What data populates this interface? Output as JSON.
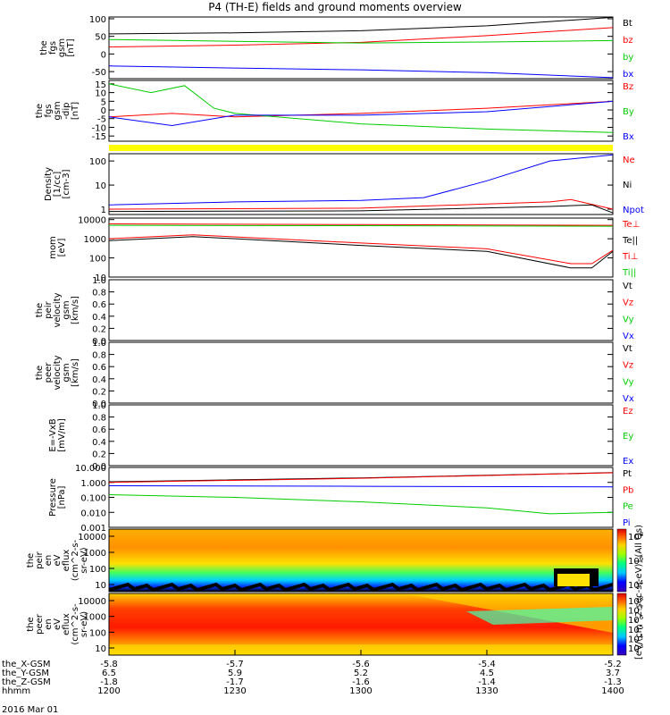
{
  "chart_data": {
    "type": "line",
    "title": "P4 (TH-E) fields and ground moments overview",
    "x_time_range": [
      "1200",
      "1400"
    ],
    "panels": [
      {
        "id": "fgs_gsm",
        "ylabel": [
          "the",
          "fgs",
          "gsm",
          "[nT]"
        ],
        "yticks": [
          "100",
          "50",
          "0",
          "-50"
        ],
        "ylim": [
          -70,
          105
        ],
        "series": [
          {
            "name": "Bt",
            "color": "#000000",
            "x": [
              "1200",
              "1230",
              "1300",
              "1330",
              "1400"
            ],
            "values": [
              57,
              60,
              66,
              80,
              104
            ]
          },
          {
            "name": "bz",
            "color": "#ff0000",
            "x": [
              "1200",
              "1230",
              "1300",
              "1330",
              "1400"
            ],
            "values": [
              20,
              25,
              33,
              52,
              75
            ]
          },
          {
            "name": "by",
            "color": "#00cc00",
            "x": [
              "1200",
              "1230",
              "1300",
              "1330",
              "1400"
            ],
            "values": [
              41,
              36,
              31,
              34,
              38
            ]
          },
          {
            "name": "bx",
            "color": "#0000ff",
            "x": [
              "1200",
              "1230",
              "1300",
              "1330",
              "1400"
            ],
            "values": [
              -34,
              -40,
              -45,
              -53,
              -67
            ]
          }
        ]
      },
      {
        "id": "fgs_gse",
        "ylabel": [
          "the",
          "fgs",
          "gsm",
          "-dip",
          "[nT]"
        ],
        "yticks": [
          "15",
          "10",
          "5",
          "0",
          "-5",
          "-10",
          "-15"
        ],
        "ylim": [
          -18,
          17
        ],
        "series": [
          {
            "name": "Bz",
            "color": "#ff0000",
            "x": [
              "1200",
              "1215",
              "1230",
              "1300",
              "1330",
              "1400"
            ],
            "values": [
              -4,
              -2,
              -4,
              -2,
              1,
              5
            ]
          },
          {
            "name": "By",
            "color": "#00cc00",
            "x": [
              "1200",
              "1210",
              "1218",
              "1225",
              "1230",
              "1300",
              "1330",
              "1400"
            ],
            "values": [
              15,
              10,
              14,
              1,
              -2,
              -8,
              -11,
              -13
            ]
          },
          {
            "name": "Bx",
            "color": "#0000ff",
            "x": [
              "1200",
              "1215",
              "1230",
              "1300",
              "1330",
              "1400"
            ],
            "values": [
              -4,
              -9,
              -3,
              -3,
              -1,
              5
            ]
          }
        ]
      },
      {
        "id": "density",
        "ylabel": [
          "Density",
          "[1/cc]",
          "[cm-3]"
        ],
        "yticks": [
          "100",
          "10",
          "1"
        ],
        "log": true,
        "ylim": [
          0.6,
          200
        ],
        "series": [
          {
            "name": "Ne",
            "color": "#ff0000",
            "x": [
              "1200",
              "1300",
              "1345",
              "1350",
              "1400"
            ],
            "values": [
              1.0,
              1.1,
              2.0,
              2.5,
              1.0
            ]
          },
          {
            "name": "Ni",
            "color": "#000000",
            "x": [
              "1200",
              "1300",
              "1345",
              "1355",
              "1400"
            ],
            "values": [
              0.8,
              0.85,
              1.3,
              1.5,
              0.7
            ]
          },
          {
            "name": "Npot",
            "color": "#0000ff",
            "x": [
              "1200",
              "1230",
              "1300",
              "1315",
              "1330",
              "1345",
              "1400"
            ],
            "values": [
              1.5,
              2.0,
              2.3,
              3.0,
              15,
              100,
              180
            ]
          }
        ]
      },
      {
        "id": "temperature",
        "ylabel": [
          "mom",
          "[eV]"
        ],
        "yticks": [
          "10000",
          "1000",
          "100",
          "10"
        ],
        "log": true,
        "ylim": [
          10,
          12000
        ],
        "series": [
          {
            "name": "Te⊥",
            "color": "#ff0000",
            "x": [
              "1200",
              "1220",
              "1300",
              "1330",
              "1350",
              "1355",
              "1400"
            ],
            "values": [
              1000,
              1600,
              600,
              300,
              50,
              50,
              250
            ]
          },
          {
            "name": "Te||",
            "color": "#000000",
            "x": [
              "1200",
              "1220",
              "1300",
              "1330",
              "1350",
              "1355",
              "1400"
            ],
            "values": [
              800,
              1300,
              450,
              220,
              30,
              30,
              220
            ]
          },
          {
            "name": "Ti⊥",
            "color": "#ff0000",
            "x": [
              "1200",
              "1300",
              "1400"
            ],
            "values": [
              6000,
              5500,
              5000
            ]
          },
          {
            "name": "Ti||",
            "color": "#00cc00",
            "x": [
              "1200",
              "1300",
              "1400"
            ],
            "values": [
              5000,
              4800,
              4500
            ]
          }
        ]
      },
      {
        "id": "peir_velocity",
        "ylabel": [
          "the",
          "peir",
          "velocity",
          "gsm",
          "[km/s]"
        ],
        "yticks": [
          "1.0",
          "0.8",
          "0.6",
          "0.4",
          "0.2",
          "0.0"
        ],
        "ylim": [
          0,
          1
        ],
        "series": [
          {
            "name": "Vt",
            "color": "#000000"
          },
          {
            "name": "Vz",
            "color": "#ff0000"
          },
          {
            "name": "Vy",
            "color": "#00cc00"
          },
          {
            "name": "Vx",
            "color": "#0000ff"
          }
        ]
      },
      {
        "id": "peer_velocity",
        "ylabel": [
          "the",
          "peer",
          "velocity",
          "gsm",
          "[km/s]"
        ],
        "yticks": [
          "1.0",
          "0.8",
          "0.6",
          "0.4",
          "0.2",
          "0.0"
        ],
        "ylim": [
          0,
          1
        ],
        "series": [
          {
            "name": "Vt",
            "color": "#000000"
          },
          {
            "name": "Vz",
            "color": "#ff0000"
          },
          {
            "name": "Vy",
            "color": "#00cc00"
          },
          {
            "name": "Vx",
            "color": "#0000ff"
          }
        ]
      },
      {
        "id": "efield",
        "ylabel": [
          "E=-VxB",
          "[mV/m]"
        ],
        "yticks": [
          "1.0",
          "0.8",
          "0.6",
          "0.4",
          "0.2",
          "0.0"
        ],
        "ylim": [
          0,
          1
        ],
        "series": [
          {
            "name": "Ez",
            "color": "#ff0000"
          },
          {
            "name": "Ey",
            "color": "#00cc00"
          },
          {
            "name": "Ex",
            "color": "#0000ff"
          }
        ]
      },
      {
        "id": "pressure",
        "ylabel": [
          "Pressure",
          "[nPa]"
        ],
        "yticks": [
          "10.000",
          "1.000",
          "0.100",
          "0.010",
          "0.001"
        ],
        "log": true,
        "ylim": [
          0.001,
          10
        ],
        "series": [
          {
            "name": "Pt",
            "color": "#000000",
            "x": [
              "1200",
              "1300",
              "1400"
            ],
            "values": [
              1.1,
              2.0,
              4.5
            ]
          },
          {
            "name": "Pb",
            "color": "#ff0000",
            "x": [
              "1200",
              "1300",
              "1400"
            ],
            "values": [
              1.0,
              1.9,
              4.4
            ]
          },
          {
            "name": "Pe",
            "color": "#00cc00",
            "x": [
              "1200",
              "1230",
              "1300",
              "1330",
              "1345",
              "1400"
            ],
            "values": [
              0.15,
              0.1,
              0.05,
              0.02,
              0.008,
              0.01
            ]
          },
          {
            "name": "Pi",
            "color": "#0000ff",
            "x": [
              "1200",
              "1300",
              "1400"
            ],
            "values": [
              0.6,
              0.55,
              0.5
            ]
          }
        ]
      },
      {
        "id": "peir_eflux",
        "type": "heatmap",
        "ylabel": [
          "the",
          "peir",
          "en",
          "eV",
          "eflux",
          "(cm^2-s-",
          "sr-eV)"
        ],
        "yticks": [
          "10000",
          "1000",
          "100",
          "10"
        ],
        "colorbar_ticks": [
          "10^8",
          "10^6",
          "10^4"
        ]
      },
      {
        "id": "peer_eflux",
        "type": "heatmap",
        "ylabel": [
          "the",
          "peer",
          "en",
          "eV",
          "eflux",
          "(cm^2-s-",
          "sr-eV)"
        ],
        "yticks": [
          "10000",
          "1000",
          "100",
          "10"
        ],
        "colorbar_ticks": [
          "10^8",
          "10^7",
          "10^6",
          "10^5",
          "10^4",
          "10^3"
        ]
      }
    ],
    "colorbar_label": "[eV/(cm^2-sec-sr-eV)] (All Qs)",
    "x_axis": {
      "rows": [
        {
          "label": "the_X-GSM",
          "values": [
            "-5.8",
            "-5.7",
            "-5.6",
            "-5.4",
            "-5.2"
          ]
        },
        {
          "label": "the_Y-GSM",
          "values": [
            "6.5",
            "5.9",
            "5.2",
            "4.5",
            "3.7"
          ]
        },
        {
          "label": "the_Z-GSM",
          "values": [
            "-1.8",
            "-1.7",
            "-1.6",
            "-1.4",
            "-1.3"
          ]
        },
        {
          "label": "hhmm",
          "values": [
            "1200",
            "1230",
            "1300",
            "1330",
            "1400"
          ]
        }
      ],
      "date": "2016 Mar 01"
    }
  }
}
